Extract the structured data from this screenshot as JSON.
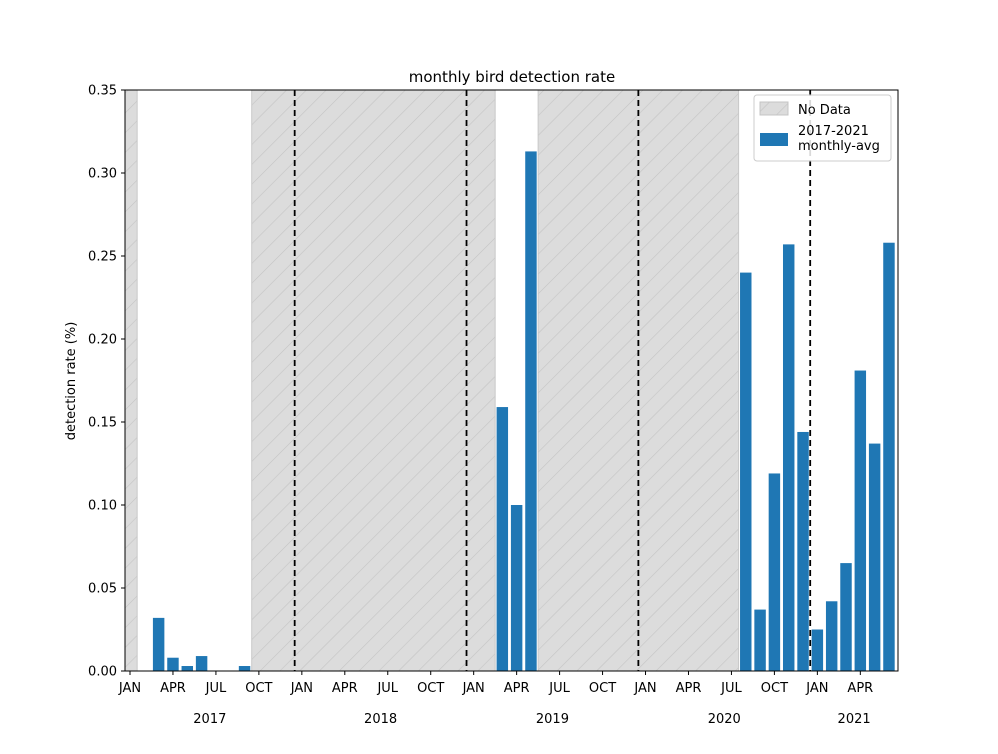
{
  "chart_data": {
    "type": "bar",
    "title": "monthly bird detection rate",
    "xlabel": "",
    "ylabel": "detection rate (%)",
    "ylim": [
      0,
      0.35
    ],
    "yticks": [
      "0.00",
      "0.05",
      "0.10",
      "0.15",
      "0.20",
      "0.25",
      "0.30",
      "0.35"
    ],
    "xlim_months": [
      "2017-01",
      "2021-06"
    ],
    "month_tick_labels": [
      "JAN",
      "APR",
      "JUL",
      "OCT"
    ],
    "years": [
      "2017",
      "2018",
      "2019",
      "2020",
      "2021"
    ],
    "year_boundaries": [
      "2018-01",
      "2019-01",
      "2020-01",
      "2021-01"
    ],
    "series": [
      {
        "name": "2017-2021\nmonthly-avg",
        "color": "#1f77b4",
        "data": [
          {
            "month": "2017-03",
            "value": 0.032
          },
          {
            "month": "2017-04",
            "value": 0.008
          },
          {
            "month": "2017-05",
            "value": 0.003
          },
          {
            "month": "2017-06",
            "value": 0.009
          },
          {
            "month": "2017-07",
            "value": 0.0
          },
          {
            "month": "2017-08",
            "value": 0.0
          },
          {
            "month": "2017-09",
            "value": 0.003
          },
          {
            "month": "2019-03",
            "value": 0.159
          },
          {
            "month": "2019-04",
            "value": 0.1
          },
          {
            "month": "2019-05",
            "value": 0.313
          },
          {
            "month": "2020-08",
            "value": 0.24
          },
          {
            "month": "2020-09",
            "value": 0.037
          },
          {
            "month": "2020-10",
            "value": 0.119
          },
          {
            "month": "2020-11",
            "value": 0.257
          },
          {
            "month": "2020-12",
            "value": 0.144
          },
          {
            "month": "2021-01",
            "value": 0.025
          },
          {
            "month": "2021-02",
            "value": 0.042
          },
          {
            "month": "2021-03",
            "value": 0.065
          },
          {
            "month": "2021-04",
            "value": 0.181
          },
          {
            "month": "2021-05",
            "value": 0.137
          },
          {
            "month": "2021-06",
            "value": 0.258
          }
        ]
      }
    ],
    "no_data_periods": [
      {
        "start": "2017-01",
        "end": "2017-01"
      },
      {
        "start": "2017-10",
        "end": "2019-02"
      },
      {
        "start": "2019-06",
        "end": "2020-07"
      }
    ],
    "legend": {
      "placement": "top-right",
      "entries": [
        {
          "label": "No Data",
          "kind": "hatched-gray"
        },
        {
          "label": "2017-2021\nmonthly-avg",
          "kind": "bar",
          "color": "#1f77b4"
        }
      ]
    },
    "colors": {
      "bar": "#1f77b4",
      "no_data_fill": "#dcdcdc",
      "no_data_hatch": "#c4c4c4",
      "year_divider": "#000000"
    },
    "grid": false
  }
}
